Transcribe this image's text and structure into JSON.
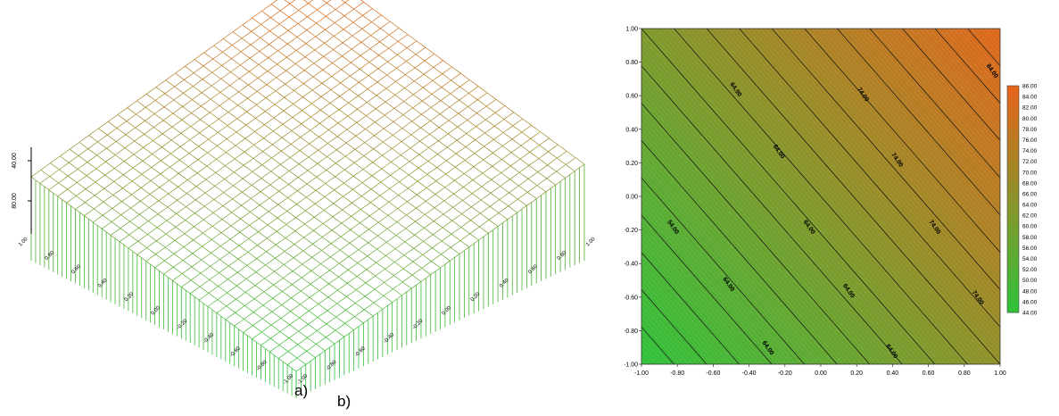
{
  "chart_data": [
    {
      "type": "surface",
      "caption": "a)",
      "x": {
        "min": -1,
        "max": 1,
        "ticks": [
          "-1.00",
          "-0.80",
          "-0.60",
          "-0.40",
          "-0.20",
          "0.00",
          "0.20",
          "0.40",
          "0.60",
          "0.80",
          "1.00"
        ]
      },
      "y": {
        "min": -1,
        "max": 1,
        "ticks": [
          "-1.00",
          "-0.80",
          "-0.60",
          "-0.40",
          "-0.20",
          "0.00",
          "0.20",
          "0.40",
          "0.60",
          "0.80",
          "1.00"
        ]
      },
      "z_ticks": [
        "40.00",
        "80.00"
      ],
      "surface": {
        "f0": 64,
        "fx": 11,
        "fy": 9,
        "grid_n": 30
      },
      "colors": {
        "low": "#2fc23a",
        "high": "#e8631a"
      }
    },
    {
      "type": "contour",
      "caption": "b)",
      "x": {
        "min": -1,
        "max": 1,
        "ticks": [
          "-1.00",
          "-0.80",
          "-0.60",
          "-0.40",
          "-0.20",
          "0.00",
          "0.20",
          "0.40",
          "0.60",
          "0.80",
          "1.00"
        ]
      },
      "y": {
        "min": -1,
        "max": 1,
        "ticks": [
          "-1.00",
          "-0.80",
          "-0.60",
          "-0.40",
          "-0.20",
          "0.00",
          "0.20",
          "0.40",
          "0.60",
          "0.80",
          "1.00"
        ]
      },
      "surface": {
        "f0": 64,
        "fx": 11,
        "fy": 9
      },
      "contour_levels": [
        46,
        48,
        50,
        52,
        54,
        56,
        58,
        60,
        62,
        64,
        66,
        68,
        70,
        72,
        74,
        76,
        78,
        80,
        82,
        84
      ],
      "contour_labels": [
        {
          "text": "54.00",
          "x": -0.82,
          "y": -0.18
        },
        {
          "text": "64.00",
          "x": -0.51,
          "y": -0.52
        },
        {
          "text": "64.00",
          "x": -0.29,
          "y": -0.9
        },
        {
          "text": "64.00",
          "x": -0.47,
          "y": 0.64
        },
        {
          "text": "64.00",
          "x": -0.23,
          "y": 0.27
        },
        {
          "text": "64.00",
          "x": -0.06,
          "y": -0.18
        },
        {
          "text": "64.00",
          "x": 0.16,
          "y": -0.56
        },
        {
          "text": "64.00",
          "x": 0.4,
          "y": -0.92
        },
        {
          "text": "74.00",
          "x": 0.24,
          "y": 0.61
        },
        {
          "text": "74.00",
          "x": 0.43,
          "y": 0.22
        },
        {
          "text": "74.00",
          "x": 0.64,
          "y": -0.18
        },
        {
          "text": "74.00",
          "x": 0.88,
          "y": -0.6
        },
        {
          "text": "84.00",
          "x": 0.96,
          "y": 0.75
        }
      ],
      "colorbar": {
        "levels": [
          "86.00",
          "84.00",
          "82.00",
          "80.00",
          "78.00",
          "76.00",
          "74.00",
          "72.00",
          "70.00",
          "68.00",
          "66.00",
          "64.00",
          "62.00",
          "60.00",
          "58.00",
          "56.00",
          "54.00",
          "52.00",
          "50.00",
          "48.00",
          "46.00",
          "44.00"
        ],
        "min": 44,
        "max": 86
      },
      "colors": {
        "low": "#2fc23a",
        "high": "#e8631a"
      }
    }
  ]
}
